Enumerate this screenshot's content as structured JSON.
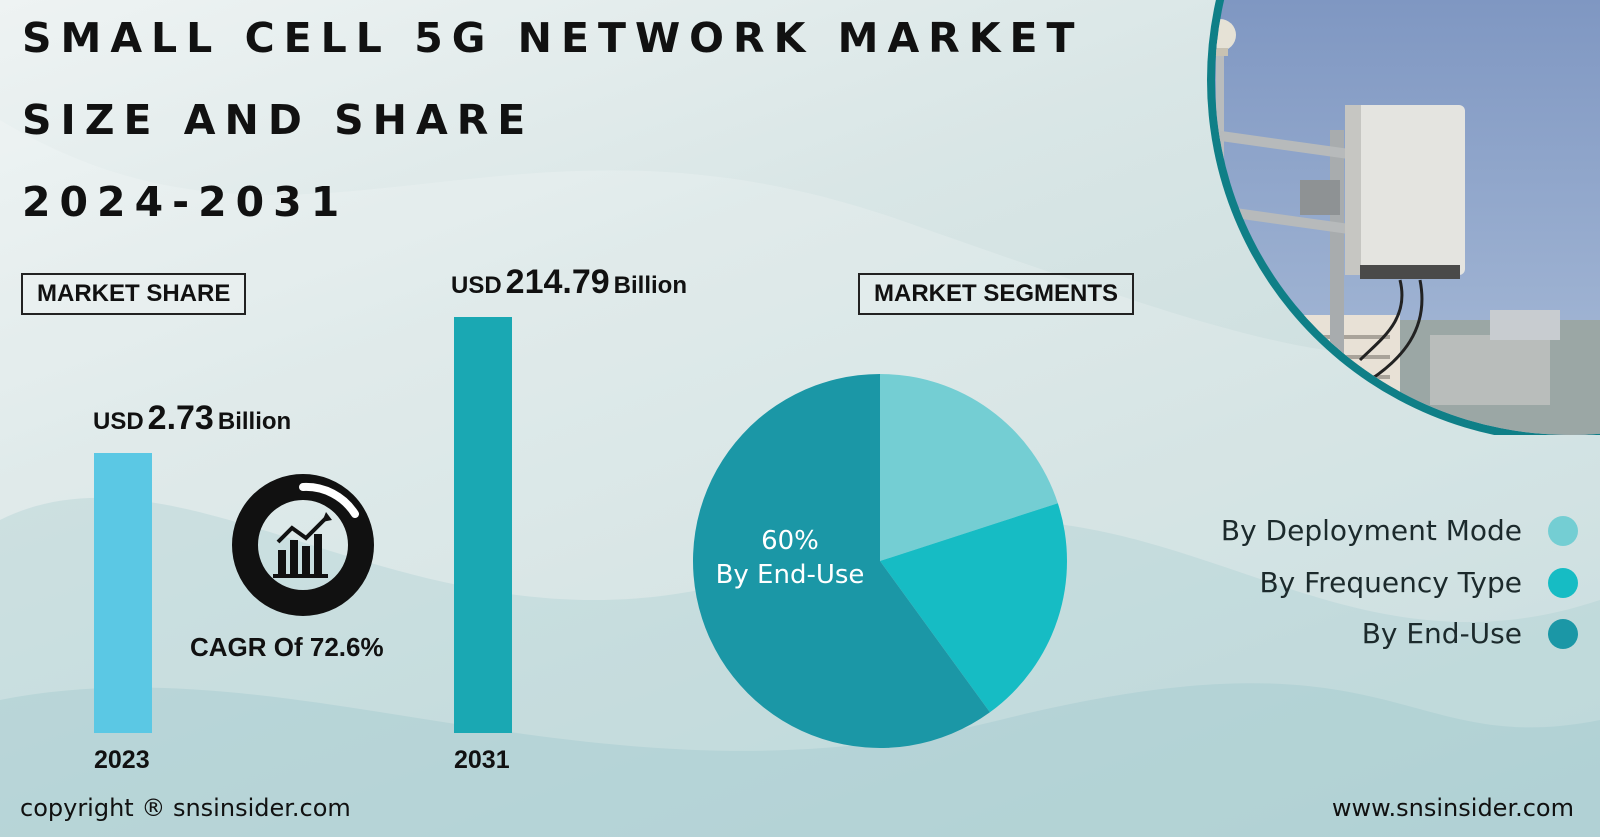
{
  "title_lines": [
    "SMALL CELL 5G NETWORK MARKET",
    "SIZE AND SHARE",
    "2024-2031"
  ],
  "market_share_label": "MARKET SHARE",
  "market_segments_label": "MARKET SEGMENTS",
  "cagr_label": "CAGR Of 72.6%",
  "legend": [
    {
      "label": "By Deployment Mode",
      "color": "#74ced3"
    },
    {
      "label": "By Frequency Type",
      "color": "#16bcc4"
    },
    {
      "label": "By End-Use",
      "color": "#1b97a6"
    }
  ],
  "footer": {
    "copyright": "copyright ® snsinsider.com",
    "website": "www.snsinsider.com"
  },
  "colors": {
    "bar_2023": "#5bc8e4",
    "bar_2031": "#1aa8b3",
    "ring": "#111111"
  },
  "chart_data": [
    {
      "type": "bar",
      "categories": [
        "2023",
        "2031"
      ],
      "value_labels": [
        {
          "currency": "USD",
          "value": "2.73",
          "unit": "Billion"
        },
        {
          "currency": "USD",
          "value": "214.79",
          "unit": "Billion"
        }
      ],
      "values": [
        2.73,
        214.79
      ]
    },
    {
      "type": "pie",
      "slices": [
        {
          "name": "By Deployment Mode",
          "value": 20
        },
        {
          "name": "By Frequency Type",
          "value": 20
        },
        {
          "name": "By End-Use",
          "value": 60,
          "label_pct": "60%",
          "label_name": "By End-Use"
        }
      ]
    }
  ]
}
